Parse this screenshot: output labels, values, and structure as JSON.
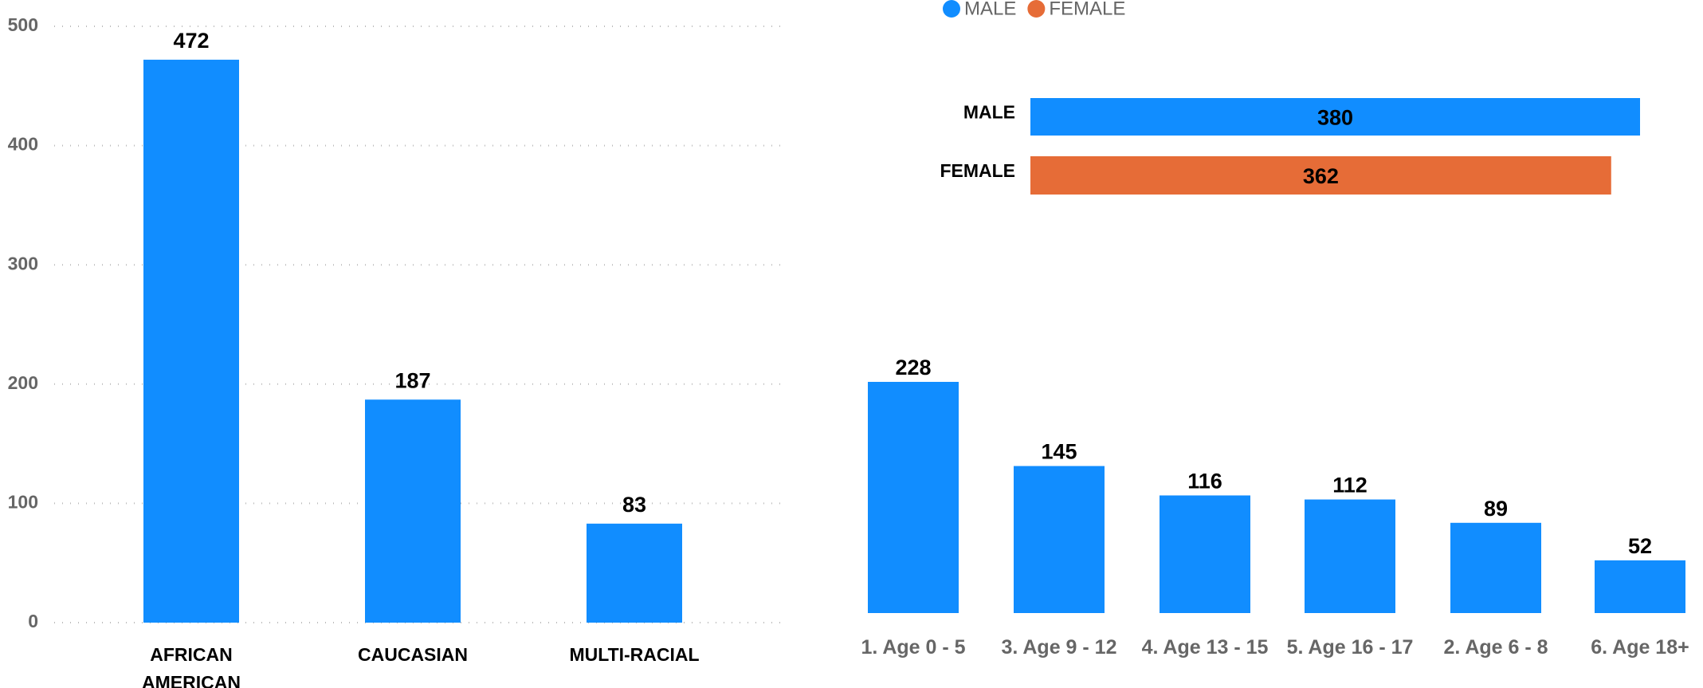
{
  "chart_data": [
    {
      "type": "bar",
      "categories": [
        "AFRICAN AMERICAN",
        "CAUCASIAN",
        "MULTI-RACIAL"
      ],
      "values": [
        472,
        187,
        83
      ],
      "color": "#118dff",
      "ylim": [
        0,
        500
      ],
      "yticks": [
        0,
        100,
        200,
        300,
        400,
        500
      ],
      "grid": true
    },
    {
      "type": "hbar",
      "categories": [
        "MALE",
        "FEMALE"
      ],
      "values": [
        380,
        362
      ],
      "colors": [
        "#118dff",
        "#e66c37"
      ],
      "legend": [
        "MALE",
        "FEMALE"
      ],
      "xlim": [
        0,
        380
      ]
    },
    {
      "type": "bar",
      "categories": [
        "1. Age 0 - 5",
        "3. Age 9 - 12",
        "4. Age 13 - 15",
        "5. Age 16 - 17",
        "2. Age 6 - 8",
        "6. Age 18+"
      ],
      "values": [
        228,
        145,
        116,
        112,
        89,
        52
      ],
      "color": "#118dff",
      "ylim": [
        0,
        228
      ]
    }
  ]
}
